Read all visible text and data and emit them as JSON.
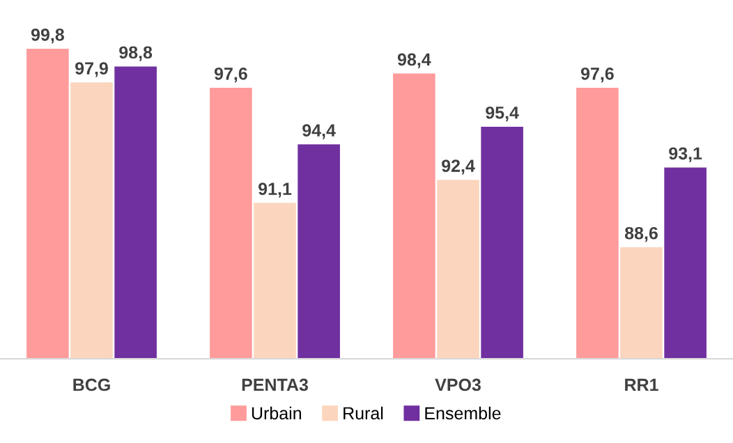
{
  "chart_data": {
    "type": "bar",
    "categories": [
      "BCG",
      "PENTA3",
      "VPO3",
      "RR1"
    ],
    "series": [
      {
        "name": "Urbain",
        "color": "#ff9b9b",
        "values": [
          99.8,
          97.6,
          98.4,
          97.6
        ],
        "value_labels": [
          "99,8",
          "97,6",
          "98,4",
          "97,6"
        ]
      },
      {
        "name": "Rural",
        "color": "#fbd5bd",
        "values": [
          97.9,
          91.1,
          92.4,
          88.6
        ],
        "value_labels": [
          "97,9",
          "91,1",
          "92,4",
          "88,6"
        ]
      },
      {
        "name": "Ensemble",
        "color": "#7030a0",
        "values": [
          98.8,
          94.4,
          95.4,
          93.1
        ],
        "value_labels": [
          "98,8",
          "94,4",
          "95,4",
          "93,1"
        ]
      }
    ],
    "ylim": [
      82.3,
      99.8
    ],
    "tick_labels": "x",
    "legend": "bottom"
  }
}
